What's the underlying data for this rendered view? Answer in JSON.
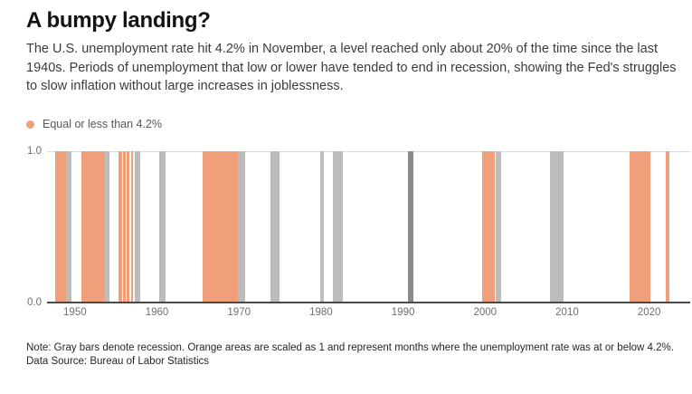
{
  "header": {
    "title": "A bumpy landing?",
    "description": "The U.S. unemployment rate hit 4.2% in November, a level reached only about 20% of the time since the last 1940s. Periods of unemployment that low or lower have tended to end in recession, showing the Fed's struggles to slow inflation without large increases in joblessness."
  },
  "legend": {
    "label": "Equal or less than 4.2%",
    "color": "#EF9F7A",
    "dot_icon": "circle-dot-icon"
  },
  "chart_data": {
    "type": "bar",
    "title": "A bumpy landing?",
    "xlabel": "",
    "ylabel": "",
    "grid": "top gridline only",
    "legend_position": "top-left",
    "x_axis": {
      "domain": [
        1946.6,
        2025.0
      ],
      "ticks": [
        1950,
        1960,
        1970,
        1980,
        1990,
        2000,
        2010,
        2020
      ]
    },
    "y_axis": {
      "range": [
        0,
        1
      ],
      "ticks": [
        {
          "label": "1.0",
          "value": 1.0
        },
        {
          "label": "0.0",
          "value": 0.0
        }
      ]
    },
    "bar_value": 1.0,
    "series": [
      {
        "id": "low-unemployment",
        "name": "Equal or less than 4.2%",
        "color": "#EF9F7A",
        "periods": [
          [
            1947.6,
            1948.9
          ],
          [
            1950.8,
            1953.5
          ],
          [
            1955.3,
            1955.7
          ],
          [
            1955.9,
            1956.15
          ],
          [
            1956.3,
            1956.6
          ],
          [
            1956.8,
            1957.1
          ],
          [
            1965.6,
            1969.9
          ],
          [
            1999.6,
            2001.2
          ],
          [
            2017.6,
            2020.2
          ],
          [
            2022.0,
            2022.5
          ]
        ]
      },
      {
        "id": "recession",
        "name": "Recession",
        "color": "#bcbcbc",
        "periods": [
          [
            1948.9,
            1949.6
          ],
          [
            1953.55,
            1954.25
          ],
          [
            1957.25,
            1957.95
          ],
          [
            1960.3,
            1961.05
          ],
          [
            1969.92,
            1970.75
          ],
          [
            1973.8,
            1974.95
          ],
          [
            1979.85,
            1980.3
          ],
          [
            1981.4,
            1982.7
          ],
          [
            1990.55,
            1991.25,
            "#8a8a8a"
          ],
          [
            2001.25,
            2002.0
          ],
          [
            2007.9,
            2009.55
          ]
        ]
      }
    ]
  },
  "footer": {
    "note": "Note: Gray bars denote recession. Orange areas are scaled as 1 and represent months where the unemployment rate was at or below 4.2%.",
    "source": "Data Source: Bureau of Labor Statistics"
  }
}
